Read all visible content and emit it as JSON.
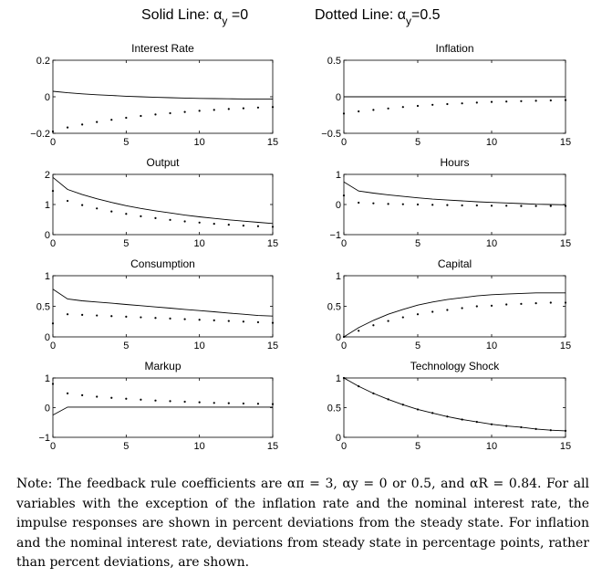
{
  "legend": {
    "solid_prefix": "Solid Line: α",
    "solid_sub": "y",
    "solid_suffix": " =0",
    "dotted_prefix": "Dotted Line: α",
    "dotted_sub": "y",
    "dotted_suffix": "=0.5"
  },
  "note": "Note: The feedback rule coefficients are απ = 3, αy = 0 or 0.5, and αR = 0.84. For all variables with the exception of the inflation rate and the nominal interest rate, the impulse responses are shown in percent deviations from the steady state. For inflation and the nominal interest rate, deviations from steady state in percentage points, rather than percent deviations, are shown.",
  "chart_data": [
    {
      "type": "line",
      "title": "Interest Rate",
      "xlim": [
        0,
        15
      ],
      "ylim": [
        -0.2,
        0.2
      ],
      "xticks": [
        "0",
        "5",
        "10",
        "15"
      ],
      "xtick_values": [
        0,
        5,
        10,
        15
      ],
      "yticks": [
        "−0.2",
        "0",
        "0.2"
      ],
      "ytick_values": [
        -0.2,
        0,
        0.2
      ],
      "x": [
        0,
        1,
        2,
        3,
        4,
        5,
        6,
        7,
        8,
        9,
        10,
        11,
        12,
        13,
        14,
        15
      ],
      "series": [
        {
          "style": "solid",
          "values": [
            0.03,
            0.022,
            0.016,
            0.011,
            0.007,
            0.003,
            0.0,
            -0.003,
            -0.005,
            -0.007,
            -0.009,
            -0.01,
            -0.011,
            -0.012,
            -0.013,
            -0.013
          ]
        },
        {
          "style": "dotted",
          "values": [
            -0.19,
            -0.168,
            -0.152,
            -0.138,
            -0.126,
            -0.115,
            -0.105,
            -0.097,
            -0.09,
            -0.083,
            -0.077,
            -0.072,
            -0.067,
            -0.063,
            -0.059,
            -0.056
          ]
        }
      ]
    },
    {
      "type": "line",
      "title": "Inflation",
      "xlim": [
        0,
        15
      ],
      "ylim": [
        -0.5,
        0.5
      ],
      "xticks": [
        "0",
        "5",
        "10",
        "15"
      ],
      "xtick_values": [
        0,
        5,
        10,
        15
      ],
      "yticks": [
        "−0.5",
        "0",
        "0.5"
      ],
      "ytick_values": [
        -0.5,
        0,
        0.5
      ],
      "x": [
        0,
        1,
        2,
        3,
        4,
        5,
        6,
        7,
        8,
        9,
        10,
        11,
        12,
        13,
        14,
        15
      ],
      "series": [
        {
          "style": "solid",
          "values": [
            0.0,
            0.0,
            0.0,
            0.0,
            0.0,
            0.0,
            0.0,
            0.0,
            0.0,
            0.0,
            0.0,
            0.0,
            0.0,
            0.0,
            0.0,
            0.0
          ]
        },
        {
          "style": "dotted",
          "values": [
            -0.23,
            -0.2,
            -0.18,
            -0.16,
            -0.14,
            -0.125,
            -0.11,
            -0.1,
            -0.09,
            -0.08,
            -0.07,
            -0.065,
            -0.06,
            -0.055,
            -0.05,
            -0.045
          ]
        }
      ]
    },
    {
      "type": "line",
      "title": "Output",
      "xlim": [
        0,
        15
      ],
      "ylim": [
        0,
        2
      ],
      "xticks": [
        "0",
        "5",
        "10",
        "15"
      ],
      "xtick_values": [
        0,
        5,
        10,
        15
      ],
      "yticks": [
        "0",
        "1",
        "2"
      ],
      "ytick_values": [
        0,
        1,
        2
      ],
      "x": [
        0,
        1,
        2,
        3,
        4,
        5,
        6,
        7,
        8,
        9,
        10,
        11,
        12,
        13,
        14,
        15
      ],
      "series": [
        {
          "style": "solid",
          "values": [
            1.9,
            1.5,
            1.33,
            1.19,
            1.07,
            0.96,
            0.87,
            0.79,
            0.72,
            0.65,
            0.59,
            0.54,
            0.49,
            0.45,
            0.41,
            0.37
          ]
        },
        {
          "style": "dotted",
          "values": [
            1.45,
            1.12,
            0.98,
            0.87,
            0.77,
            0.69,
            0.61,
            0.55,
            0.49,
            0.44,
            0.4,
            0.36,
            0.33,
            0.3,
            0.28,
            0.26
          ]
        }
      ]
    },
    {
      "type": "line",
      "title": "Hours",
      "xlim": [
        0,
        15
      ],
      "ylim": [
        -1,
        1
      ],
      "xticks": [
        "0",
        "5",
        "10",
        "15"
      ],
      "xtick_values": [
        0,
        5,
        10,
        15
      ],
      "yticks": [
        "−1",
        "0",
        "1"
      ],
      "ytick_values": [
        -1,
        0,
        1
      ],
      "x": [
        0,
        1,
        2,
        3,
        4,
        5,
        6,
        7,
        8,
        9,
        10,
        11,
        12,
        13,
        14,
        15
      ],
      "series": [
        {
          "style": "solid",
          "values": [
            0.75,
            0.45,
            0.38,
            0.32,
            0.27,
            0.22,
            0.18,
            0.15,
            0.12,
            0.09,
            0.07,
            0.05,
            0.03,
            0.01,
            0.0,
            -0.01
          ]
        },
        {
          "style": "dotted",
          "values": [
            0.3,
            0.06,
            0.04,
            0.02,
            0.01,
            0.0,
            -0.01,
            -0.02,
            -0.03,
            -0.03,
            -0.04,
            -0.04,
            -0.05,
            -0.05,
            -0.05,
            -0.05
          ]
        }
      ]
    },
    {
      "type": "line",
      "title": "Consumption",
      "xlim": [
        0,
        15
      ],
      "ylim": [
        0,
        1
      ],
      "xticks": [
        "0",
        "5",
        "10",
        "15"
      ],
      "xtick_values": [
        0,
        5,
        10,
        15
      ],
      "yticks": [
        "0",
        "0.5",
        "1"
      ],
      "ytick_values": [
        0,
        0.5,
        1
      ],
      "x": [
        0,
        1,
        2,
        3,
        4,
        5,
        6,
        7,
        8,
        9,
        10,
        11,
        12,
        13,
        14,
        15
      ],
      "series": [
        {
          "style": "solid",
          "values": [
            0.78,
            0.62,
            0.59,
            0.57,
            0.55,
            0.53,
            0.51,
            0.49,
            0.47,
            0.45,
            0.43,
            0.41,
            0.39,
            0.37,
            0.35,
            0.34
          ]
        },
        {
          "style": "dotted",
          "values": [
            0.22,
            0.37,
            0.36,
            0.35,
            0.34,
            0.33,
            0.32,
            0.31,
            0.3,
            0.29,
            0.28,
            0.27,
            0.26,
            0.25,
            0.24,
            0.23
          ]
        }
      ]
    },
    {
      "type": "line",
      "title": "Capital",
      "xlim": [
        0,
        15
      ],
      "ylim": [
        0,
        1
      ],
      "xticks": [
        "0",
        "5",
        "10",
        "15"
      ],
      "xtick_values": [
        0,
        5,
        10,
        15
      ],
      "yticks": [
        "0",
        "0.5",
        "1"
      ],
      "ytick_values": [
        0,
        0.5,
        1
      ],
      "x": [
        0,
        1,
        2,
        3,
        4,
        5,
        6,
        7,
        8,
        9,
        10,
        11,
        12,
        13,
        14,
        15
      ],
      "series": [
        {
          "style": "solid",
          "values": [
            0.0,
            0.15,
            0.27,
            0.37,
            0.45,
            0.52,
            0.57,
            0.61,
            0.64,
            0.67,
            0.69,
            0.7,
            0.71,
            0.72,
            0.72,
            0.72
          ]
        },
        {
          "style": "dotted",
          "values": [
            0.0,
            0.1,
            0.19,
            0.26,
            0.32,
            0.37,
            0.41,
            0.44,
            0.47,
            0.5,
            0.51,
            0.53,
            0.54,
            0.55,
            0.56,
            0.56
          ]
        }
      ]
    },
    {
      "type": "line",
      "title": "Markup",
      "xlim": [
        0,
        15
      ],
      "ylim": [
        -1,
        1
      ],
      "xticks": [
        "0",
        "5",
        "10",
        "15"
      ],
      "xtick_values": [
        0,
        5,
        10,
        15
      ],
      "yticks": [
        "−1",
        "0",
        "1"
      ],
      "ytick_values": [
        -1,
        0,
        1
      ],
      "x": [
        0,
        1,
        2,
        3,
        4,
        5,
        6,
        7,
        8,
        9,
        10,
        11,
        12,
        13,
        14,
        15
      ],
      "series": [
        {
          "style": "solid",
          "values": [
            -0.25,
            0.02,
            0.02,
            0.02,
            0.02,
            0.02,
            0.02,
            0.02,
            0.02,
            0.02,
            0.02,
            0.02,
            0.02,
            0.02,
            0.02,
            0.02
          ]
        },
        {
          "style": "dotted",
          "values": [
            0.8,
            0.48,
            0.42,
            0.37,
            0.33,
            0.3,
            0.27,
            0.24,
            0.22,
            0.2,
            0.18,
            0.16,
            0.15,
            0.14,
            0.13,
            0.12
          ]
        }
      ]
    },
    {
      "type": "line",
      "title": "Technology Shock",
      "xlim": [
        0,
        15
      ],
      "ylim": [
        0,
        1
      ],
      "xticks": [
        "0",
        "5",
        "10",
        "15"
      ],
      "xtick_values": [
        0,
        5,
        10,
        15
      ],
      "yticks": [
        "0",
        "0.5",
        "1"
      ],
      "ytick_values": [
        0,
        0.5,
        1
      ],
      "x": [
        0,
        1,
        2,
        3,
        4,
        5,
        6,
        7,
        8,
        9,
        10,
        11,
        12,
        13,
        14,
        15
      ],
      "series": [
        {
          "style": "solid",
          "values": [
            1.0,
            0.86,
            0.74,
            0.64,
            0.55,
            0.47,
            0.41,
            0.35,
            0.3,
            0.26,
            0.22,
            0.19,
            0.17,
            0.14,
            0.12,
            0.11
          ]
        },
        {
          "style": "dotted",
          "values": [
            1.0,
            0.86,
            0.74,
            0.64,
            0.55,
            0.47,
            0.41,
            0.35,
            0.3,
            0.26,
            0.22,
            0.19,
            0.17,
            0.14,
            0.12,
            0.11
          ]
        }
      ]
    }
  ]
}
